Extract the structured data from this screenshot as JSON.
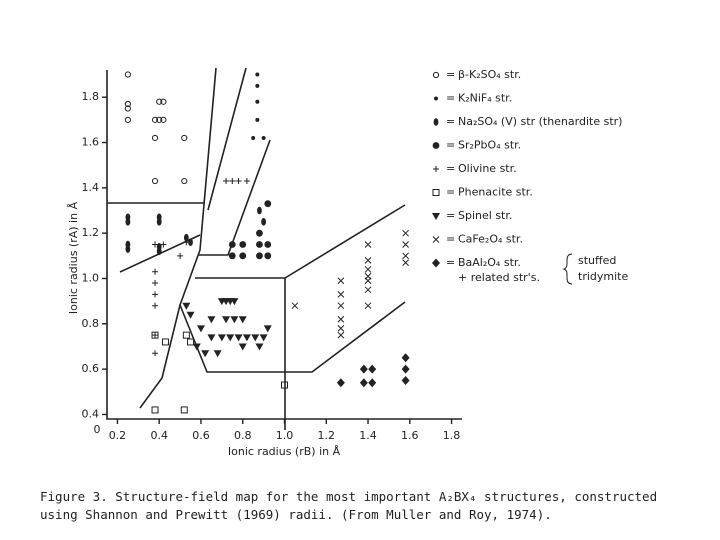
{
  "chart_data": {
    "type": "scatter",
    "xlabel": "Ionic radius (rB) in Å",
    "ylabel": "Ionic radius (rA) in Å",
    "origin_label": "0",
    "xlim": [
      0.15,
      1.85
    ],
    "ylim": [
      0.38,
      1.92
    ],
    "xticks": [
      0.2,
      0.4,
      0.6,
      0.8,
      {
        "value": 1,
        "label": "1.0"
      },
      1.2,
      1.4,
      1.6,
      1.8
    ],
    "yticks": [
      0.4,
      0.6,
      0.8,
      {
        "value": 1,
        "label": "1.0"
      },
      1.2,
      1.4,
      1.6,
      1.8
    ],
    "series": [
      {
        "name": "β-K₂SO₄ str.",
        "marker": "open-circle",
        "color": "#222",
        "x": [
          0.25,
          0.25,
          0.25,
          0.25,
          0.38,
          0.4,
          0.42,
          0.38,
          0.38,
          0.52,
          0.52,
          0.4,
          0.42
        ],
        "values": [
          1.9,
          1.77,
          1.75,
          1.7,
          1.7,
          1.7,
          1.7,
          1.62,
          1.43,
          1.62,
          1.43,
          1.78,
          1.78
        ]
      },
      {
        "name": "K₂NiF₄ str.",
        "marker": "dot",
        "color": "#222",
        "x": [
          0.87,
          0.87,
          0.87,
          0.87,
          0.9,
          0.85
        ],
        "values": [
          1.9,
          1.85,
          1.78,
          1.7,
          1.62,
          1.62
        ]
      },
      {
        "name": "Na₂SO₄ (V) str (thenardite str)",
        "marker": "oval",
        "color": "#222",
        "x": [
          0.25,
          0.25,
          0.25,
          0.25,
          0.4,
          0.4,
          0.4,
          0.4,
          0.53,
          0.55,
          0.88,
          0.9
        ],
        "values": [
          1.27,
          1.25,
          1.15,
          1.13,
          1.27,
          1.25,
          1.14,
          1.12,
          1.18,
          1.16,
          1.3,
          1.25
        ]
      },
      {
        "name": "Sr₂PbO₄ str.",
        "marker": "big-dot",
        "color": "#222",
        "x": [
          0.75,
          0.8,
          0.88,
          0.92,
          0.75,
          0.8,
          0.88,
          0.92,
          0.88,
          0.92
        ],
        "values": [
          1.15,
          1.15,
          1.15,
          1.15,
          1.1,
          1.1,
          1.1,
          1.1,
          1.2,
          1.33
        ]
      },
      {
        "name": "Olivine str.",
        "marker": "plus",
        "color": "#222",
        "x": [
          0.38,
          0.42,
          0.38,
          0.38,
          0.38,
          0.38,
          0.38,
          0.38,
          0.5,
          0.53,
          0.72,
          0.75,
          0.78,
          0.82
        ],
        "values": [
          1.15,
          1.15,
          1.03,
          0.98,
          0.93,
          0.88,
          0.75,
          0.67,
          1.1,
          1.16,
          1.43,
          1.43,
          1.43,
          1.43
        ]
      },
      {
        "name": "Phenacite str.",
        "marker": "square",
        "color": "#222",
        "x": [
          0.38,
          0.43,
          0.53,
          0.55,
          0.38,
          0.52,
          1.0
        ],
        "values": [
          0.75,
          0.72,
          0.75,
          0.72,
          0.42,
          0.42,
          0.53
        ]
      },
      {
        "name": "Spinel str.",
        "marker": "triangle",
        "color": "#222",
        "x": [
          0.53,
          0.55,
          0.6,
          0.65,
          0.65,
          0.7,
          0.72,
          0.74,
          0.76,
          0.72,
          0.76,
          0.8,
          0.7,
          0.74,
          0.78,
          0.82,
          0.86,
          0.9,
          0.62,
          0.68,
          0.8,
          0.88,
          0.92,
          0.58
        ],
        "values": [
          0.88,
          0.84,
          0.78,
          0.82,
          0.74,
          0.9,
          0.9,
          0.9,
          0.9,
          0.82,
          0.82,
          0.82,
          0.74,
          0.74,
          0.74,
          0.74,
          0.74,
          0.74,
          0.67,
          0.67,
          0.7,
          0.7,
          0.78,
          0.7
        ]
      },
      {
        "name": "CaFe₂O₄ str.",
        "marker": "cross",
        "color": "#222",
        "x": [
          1.05,
          1.27,
          1.27,
          1.27,
          1.27,
          1.27,
          1.27,
          1.4,
          1.4,
          1.4,
          1.4,
          1.4,
          1.4,
          1.4,
          1.58,
          1.58,
          1.58,
          1.58
        ],
        "values": [
          0.88,
          0.99,
          0.93,
          0.88,
          0.82,
          0.78,
          0.75,
          1.15,
          1.08,
          1.04,
          1.01,
          0.99,
          0.95,
          0.88,
          1.2,
          1.15,
          1.1,
          1.07
        ]
      },
      {
        "name": "BaAl₂O₄ str.",
        "marker": "diamond",
        "color": "#222",
        "x": [
          1.27,
          1.38,
          1.42,
          1.38,
          1.42,
          1.58,
          1.58,
          1.58
        ],
        "values": [
          0.54,
          0.54,
          0.54,
          0.6,
          0.6,
          0.65,
          0.6,
          0.55
        ]
      }
    ],
    "annotations": [
      "+ related str's.",
      "stuffed",
      "tridymite"
    ],
    "caption": "Figure 3.  Structure-field map for the most important A₂BX₄ structures, constructed using Shannon and Prewitt (1969) radii.  (From Muller and Roy, 1974)."
  }
}
